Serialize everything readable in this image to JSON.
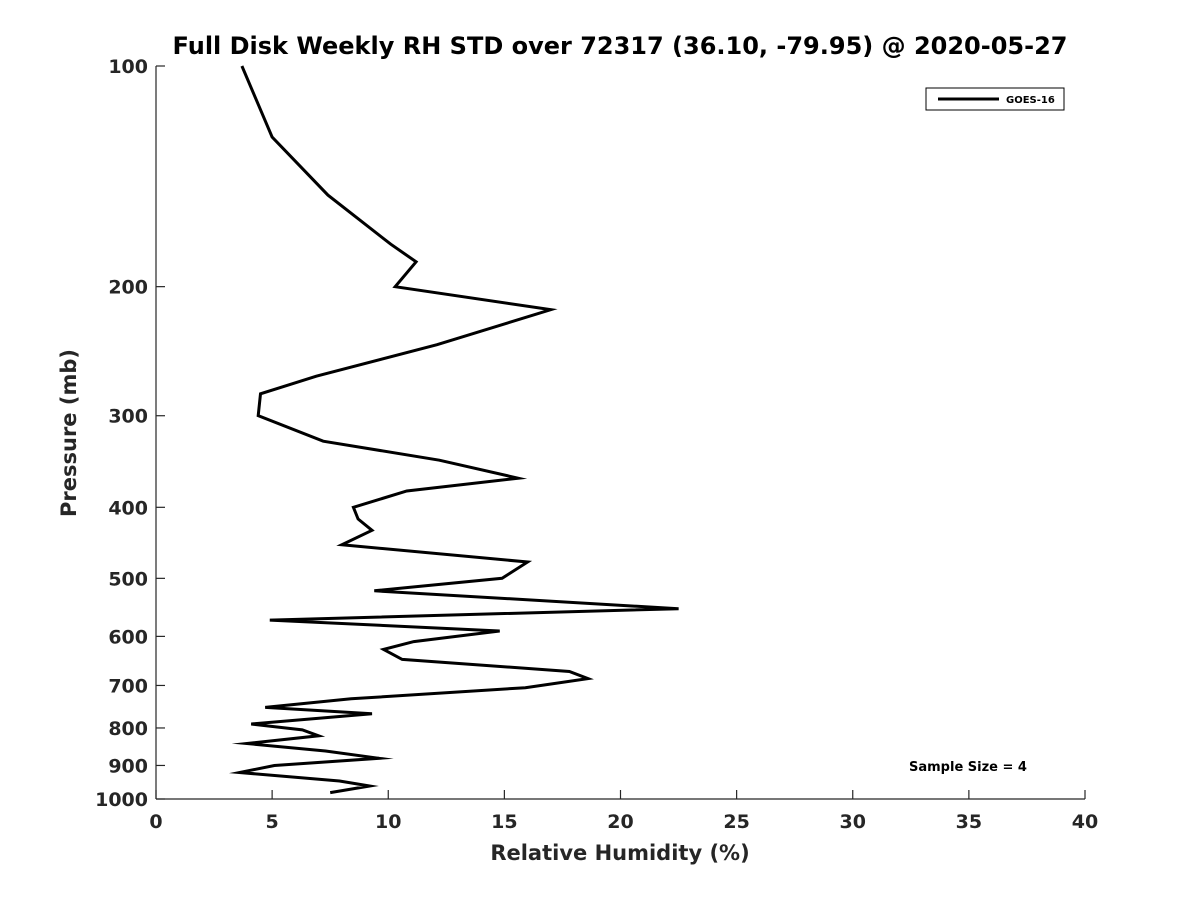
{
  "chart_data": {
    "type": "line",
    "title": "Full Disk Weekly RH STD over 72317 (36.10, -79.95) @ 2020-05-27",
    "xlabel": "Relative Humidity (%)",
    "ylabel": "Pressure (mb)",
    "xlim": [
      0,
      40
    ],
    "ylim": [
      100,
      1000
    ],
    "y_scale": "log",
    "y_reversed": true,
    "x_ticks": [
      "0",
      "5",
      "10",
      "15",
      "20",
      "25",
      "30",
      "35",
      "40"
    ],
    "y_ticks": [
      "100",
      "200",
      "300",
      "400",
      "500",
      "600",
      "700",
      "800",
      "900",
      "1000"
    ],
    "grid": false,
    "legend_position": "top-right",
    "annotation": "Sample Size = 4",
    "series": [
      {
        "name": "GOES-16",
        "color": "#000000",
        "points": [
          [
            3.7,
            100
          ],
          [
            5.0,
            125
          ],
          [
            7.4,
            150
          ],
          [
            10.1,
            175
          ],
          [
            11.2,
            185
          ],
          [
            10.3,
            200
          ],
          [
            17.0,
            215
          ],
          [
            12.1,
            240
          ],
          [
            6.9,
            265
          ],
          [
            4.5,
            280
          ],
          [
            4.4,
            300
          ],
          [
            7.2,
            325
          ],
          [
            12.2,
            345
          ],
          [
            15.6,
            365
          ],
          [
            10.8,
            380
          ],
          [
            8.5,
            400
          ],
          [
            8.7,
            415
          ],
          [
            9.3,
            430
          ],
          [
            8.0,
            450
          ],
          [
            16.0,
            475
          ],
          [
            14.9,
            500
          ],
          [
            9.4,
            520
          ],
          [
            22.5,
            550
          ],
          [
            4.9,
            570
          ],
          [
            14.8,
            590
          ],
          [
            11.1,
            610
          ],
          [
            9.8,
            625
          ],
          [
            10.6,
            645
          ],
          [
            17.8,
            670
          ],
          [
            18.6,
            685
          ],
          [
            15.9,
            705
          ],
          [
            8.4,
            730
          ],
          [
            4.7,
            750
          ],
          [
            9.3,
            765
          ],
          [
            4.1,
            790
          ],
          [
            6.3,
            805
          ],
          [
            7.0,
            820
          ],
          [
            3.9,
            840
          ],
          [
            7.3,
            860
          ],
          [
            9.6,
            880
          ],
          [
            5.1,
            900
          ],
          [
            3.6,
            920
          ],
          [
            7.9,
            945
          ],
          [
            9.2,
            960
          ],
          [
            7.5,
            980
          ]
        ]
      }
    ]
  }
}
